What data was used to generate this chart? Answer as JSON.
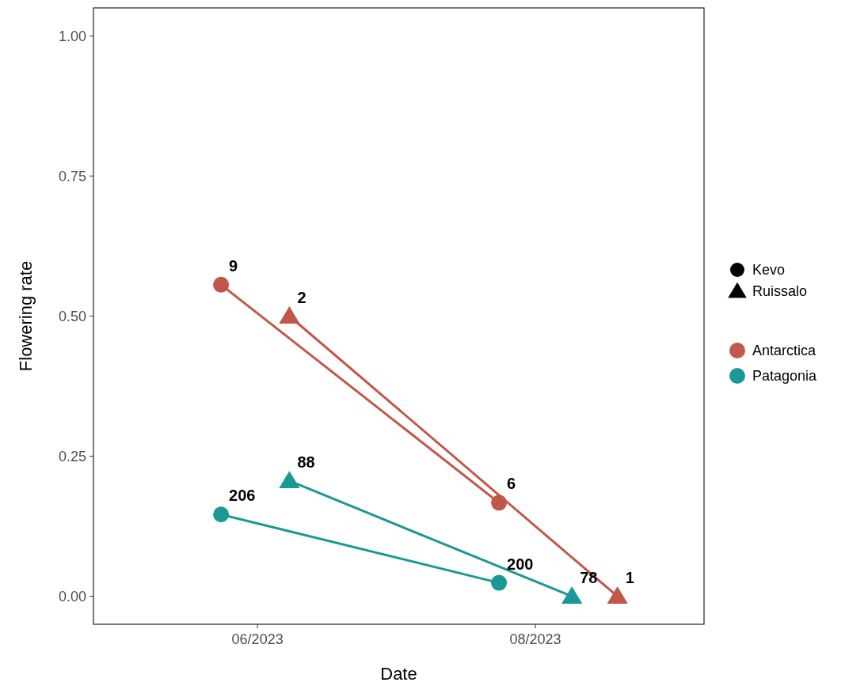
{
  "chart_data": {
    "type": "line",
    "xlabel": "Date",
    "ylabel": "Flowering rate",
    "xlim": [
      "2023-04-26",
      "2023-09-07"
    ],
    "xticks": [
      {
        "value": "2023-06-01",
        "label": "06/2023"
      },
      {
        "value": "2023-08-01",
        "label": "08/2023"
      }
    ],
    "ylim": [
      -0.05,
      1.05
    ],
    "yticks": [
      {
        "value": 0,
        "label": "0.00"
      },
      {
        "value": 0.25,
        "label": "0.25"
      },
      {
        "value": 0.5,
        "label": "0.50"
      },
      {
        "value": 0.75,
        "label": "0.75"
      },
      {
        "value": 1,
        "label": "1.00"
      }
    ],
    "grid": false,
    "legend": "right",
    "annotations": [
      "Kevo",
      "Ruissalo",
      {
        "text": "9",
        "x": "2023-05-24",
        "y": 0.556
      },
      {
        "text": "6",
        "x": "2023-07-24",
        "y": 0.167
      },
      {
        "text": "2",
        "x": "2023-06-08",
        "y": 0.5
      },
      {
        "text": "1",
        "x": "2023-08-19",
        "y": 0
      },
      {
        "text": "206",
        "x": "2023-05-24",
        "y": 0.146
      },
      {
        "text": "200",
        "x": "2023-07-24",
        "y": 0.024
      },
      {
        "text": "88",
        "x": "2023-06-08",
        "y": 0.206
      },
      {
        "text": "78",
        "x": "2023-08-09",
        "y": 0
      }
    ],
    "series": [
      {
        "name": "Antarctica",
        "color": "#c1574a",
        "marker": "circle",
        "x": [
          "2023-05-24",
          "2023-07-24"
        ],
        "values": [
          0.556,
          0.167
        ]
      },
      {
        "color": "#c1574a",
        "marker": "triangle",
        "x": [
          "2023-06-08",
          "2023-08-19"
        ],
        "values": [
          0.5,
          0
        ]
      },
      {
        "name": "Patagonia",
        "color": "#1a9896",
        "marker": "circle",
        "x": [
          "2023-05-24",
          "2023-07-24"
        ],
        "values": [
          0.146,
          0.024
        ]
      },
      {
        "color": "#1a9896",
        "marker": "triangle",
        "x": [
          "2023-06-08",
          "2023-08-09"
        ],
        "values": [
          0.206,
          0
        ]
      }
    ]
  }
}
